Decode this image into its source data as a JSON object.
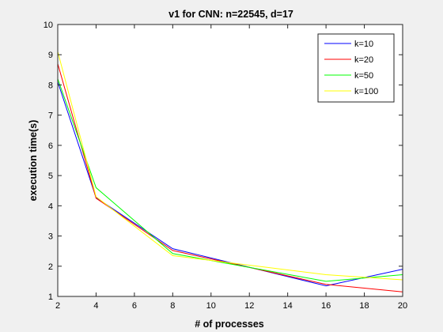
{
  "chart_data": {
    "type": "line",
    "title": "v1 for CNN: n=22545, d=17",
    "xlabel": "# of processes",
    "ylabel": "execution time(s)",
    "xlim": [
      2,
      20
    ],
    "ylim": [
      1,
      10
    ],
    "xticks": [
      2,
      4,
      6,
      8,
      10,
      12,
      14,
      16,
      18,
      20
    ],
    "yticks": [
      1,
      2,
      3,
      4,
      5,
      6,
      7,
      8,
      9,
      10
    ],
    "x": [
      2,
      4,
      8,
      16,
      20
    ],
    "grid": false,
    "legend_position": "top-right",
    "series": [
      {
        "name": "k=10",
        "color": "#0000ff",
        "values": [
          8.1,
          4.27,
          2.58,
          1.35,
          1.9
        ]
      },
      {
        "name": "k=20",
        "color": "#ff0000",
        "values": [
          8.7,
          4.25,
          2.52,
          1.4,
          1.15
        ]
      },
      {
        "name": "k=50",
        "color": "#00ff00",
        "values": [
          8.2,
          4.6,
          2.42,
          1.5,
          1.72
        ]
      },
      {
        "name": "k=100",
        "color": "#ffff00",
        "values": [
          9.1,
          4.3,
          2.35,
          1.72,
          1.55
        ]
      }
    ]
  }
}
